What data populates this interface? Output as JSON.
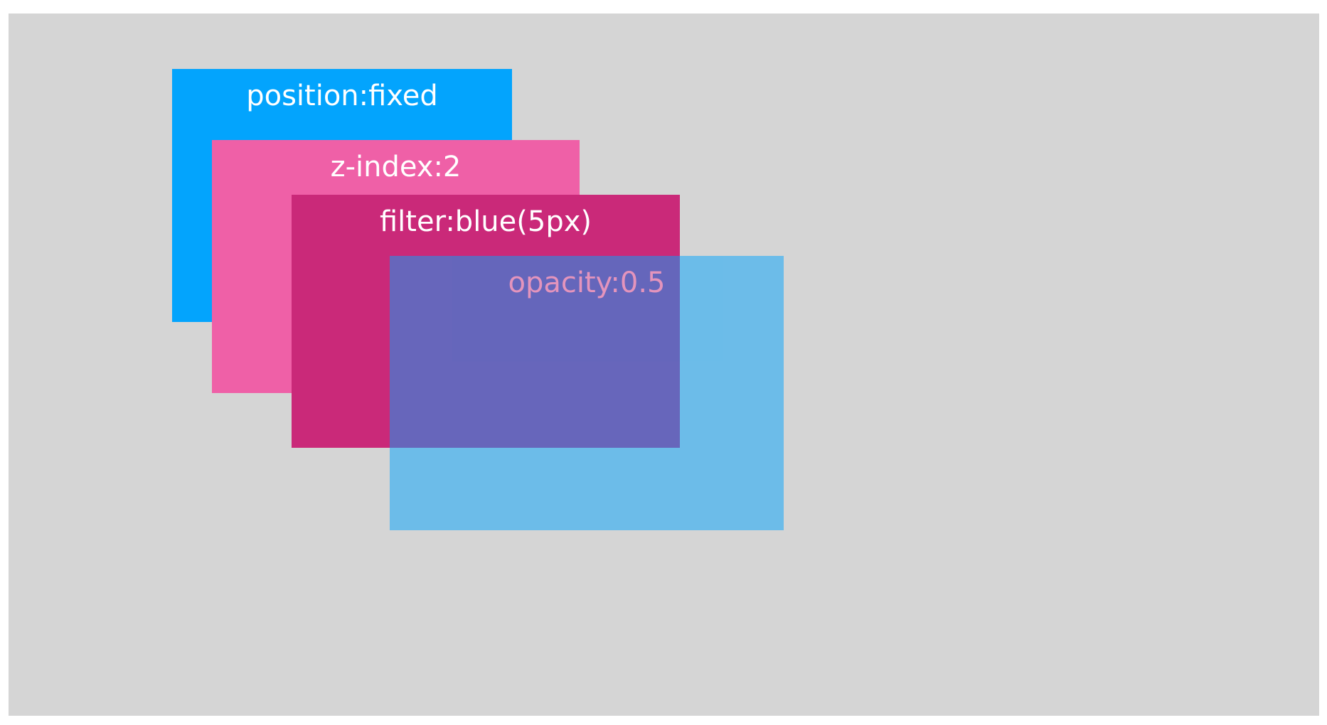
{
  "colors": {
    "page_background": "#ffffff",
    "canvas_background": "#d5d5d5",
    "fixed_box": "#03a4fd",
    "zindex_box": "#ef60a7",
    "filter_box": "#ca2979",
    "opacity_box": "#03a4fd",
    "label_text": "#ffffff"
  },
  "boxes": [
    {
      "id": "fixed",
      "label": "position:fixed"
    },
    {
      "id": "zindex",
      "label": "z-index:2"
    },
    {
      "id": "filter",
      "label": "filter:blue(5px)"
    },
    {
      "id": "opacity",
      "label": "opacity:0.5",
      "opacity": 0.5
    }
  ]
}
